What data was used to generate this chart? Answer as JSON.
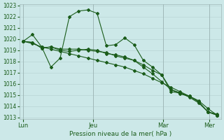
{
  "title": "",
  "xlabel": "Pression niveau de la mer( hPa )",
  "ylim": [
    1013,
    1023
  ],
  "yticks": [
    1013,
    1014,
    1015,
    1016,
    1017,
    1018,
    1019,
    1020,
    1021,
    1022,
    1023
  ],
  "bg_color": "#cce8e8",
  "grid_color": "#b8d4d4",
  "line_color": "#1a5c1a",
  "day_labels": [
    "Lun",
    "Jeu",
    "Mar",
    "Mer"
  ],
  "day_positions": [
    0.0,
    0.36,
    0.72,
    0.96
  ],
  "lines": [
    [
      1019.8,
      1020.4,
      1019.3,
      1017.5,
      1018.3,
      1022.0,
      1022.5,
      1022.6,
      1022.3,
      1019.4,
      1019.5,
      1020.1,
      1019.5,
      1018.1,
      1017.5,
      1016.8,
      1015.3,
      1015.2,
      1014.8,
      1014.3,
      1013.5,
      1013.3
    ],
    [
      1019.8,
      1019.7,
      1019.2,
      1019.3,
      1019.0,
      1018.9,
      1019.0,
      1019.1,
      1019.0,
      1018.7,
      1018.6,
      1018.4,
      1018.1,
      1017.5,
      1016.9,
      1016.2,
      1015.5,
      1015.2,
      1014.9,
      1014.4,
      1013.5,
      1013.2
    ],
    [
      1019.8,
      1019.7,
      1019.2,
      1019.3,
      1019.1,
      1019.1,
      1019.1,
      1019.0,
      1018.9,
      1018.8,
      1018.5,
      1018.3,
      1018.1,
      1017.7,
      1017.2,
      1016.8,
      1015.5,
      1015.1,
      1014.9,
      1014.4,
      1013.5,
      1013.2
    ],
    [
      1019.8,
      1019.6,
      1019.3,
      1019.1,
      1018.9,
      1018.7,
      1018.5,
      1018.3,
      1018.1,
      1017.9,
      1017.7,
      1017.5,
      1017.2,
      1016.9,
      1016.5,
      1016.1,
      1015.7,
      1015.3,
      1014.9,
      1014.5,
      1013.8,
      1013.2
    ]
  ],
  "n_points": 22
}
